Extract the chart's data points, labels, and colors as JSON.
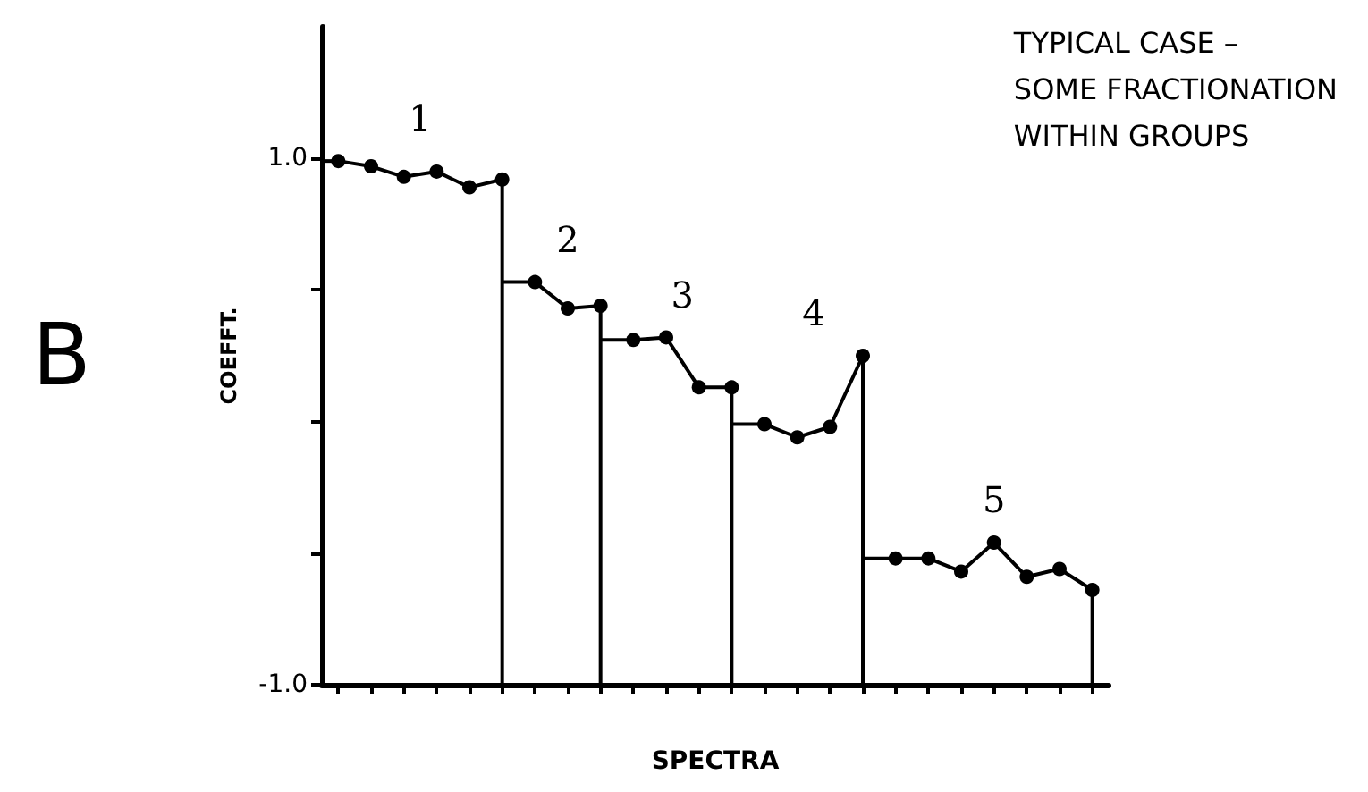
{
  "chart_data": {
    "type": "line",
    "title": "TYPICAL CASE –\nSOME FRACTIONATION\nWITHIN GROUPS",
    "xlabel": "SPECTRA",
    "ylabel": "COEFFT.",
    "annotations": [
      "B"
    ],
    "categories": [
      null,
      null,
      null,
      null,
      null,
      null,
      null,
      null,
      null,
      null,
      null,
      null,
      null,
      null,
      null,
      null,
      null,
      null,
      null,
      null,
      null,
      null,
      null,
      null
    ],
    "ylim": [
      -1.0,
      1.5
    ],
    "yticks": [
      {
        "value": -1.0,
        "label": "-1.0"
      },
      {
        "value": -0.5,
        "label": null
      },
      {
        "value": 0,
        "label": null
      },
      {
        "value": 0.5,
        "label": null
      },
      {
        "value": 1.0,
        "label": "1.0"
      }
    ],
    "tick_labels": "y",
    "grid": false,
    "legend": false,
    "marker": "circle",
    "line_style": "solid",
    "series": [
      {
        "name": "1",
        "color": "#000000",
        "values": [
          0.99,
          0.97,
          0.93,
          0.95,
          0.89,
          0.92,
          null,
          null,
          null,
          null,
          null,
          null,
          null,
          null,
          null,
          null,
          null,
          null,
          null,
          null,
          null,
          null,
          null,
          null
        ]
      },
      {
        "name": "2",
        "color": "#000000",
        "values": [
          null,
          null,
          null,
          null,
          null,
          null,
          0.53,
          0.43,
          0.44,
          null,
          null,
          null,
          null,
          null,
          null,
          null,
          null,
          null,
          null,
          null,
          null,
          null,
          null,
          null
        ]
      },
      {
        "name": "3",
        "color": "#000000",
        "values": [
          null,
          null,
          null,
          null,
          null,
          null,
          null,
          null,
          null,
          0.31,
          0.32,
          0.13,
          0.13,
          null,
          null,
          null,
          null,
          null,
          null,
          null,
          null,
          null,
          null,
          null
        ]
      },
      {
        "name": "4",
        "color": "#000000",
        "values": [
          null,
          null,
          null,
          null,
          null,
          null,
          null,
          null,
          null,
          null,
          null,
          null,
          null,
          -0.01,
          -0.06,
          -0.02,
          0.25,
          null,
          null,
          null,
          null,
          null,
          null,
          null
        ]
      },
      {
        "name": "5",
        "color": "#000000",
        "values": [
          null,
          null,
          null,
          null,
          null,
          null,
          null,
          null,
          null,
          null,
          null,
          null,
          null,
          null,
          null,
          null,
          null,
          -0.52,
          -0.52,
          -0.57,
          -0.46,
          -0.59,
          -0.56,
          -0.64
        ]
      }
    ]
  }
}
